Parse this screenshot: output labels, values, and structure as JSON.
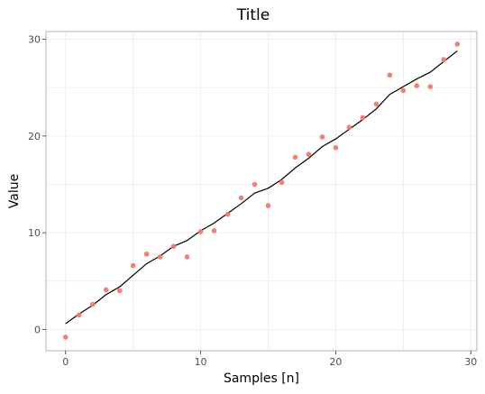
{
  "chart_data": {
    "type": "scatter",
    "title": "Title",
    "xlabel": "Samples [n]",
    "ylabel": "Value",
    "xlim": [
      -1.45,
      30.45
    ],
    "ylim": [
      -2.2,
      30.8
    ],
    "xticks": [
      0,
      10,
      20,
      30
    ],
    "yticks": [
      0,
      10,
      20,
      30
    ],
    "grid": true,
    "legend": "none",
    "colors": {
      "points": "#f8766d",
      "line": "#000000"
    },
    "series": [
      {
        "kind": "points",
        "x": [
          0,
          1,
          2,
          3,
          4,
          5,
          6,
          7,
          8,
          9,
          10,
          11,
          12,
          13,
          14,
          15,
          16,
          17,
          18,
          19,
          20,
          21,
          22,
          23,
          24,
          25,
          26,
          27,
          28,
          29
        ],
        "y": [
          -0.8,
          1.5,
          2.6,
          4.1,
          4.0,
          6.6,
          7.8,
          7.5,
          8.6,
          7.5,
          10.1,
          10.2,
          11.9,
          13.6,
          15.0,
          12.8,
          15.2,
          17.8,
          18.1,
          19.9,
          18.8,
          20.9,
          21.9,
          23.3,
          26.3,
          24.7,
          25.2,
          25.1,
          27.9,
          29.5
        ]
      },
      {
        "kind": "line",
        "x": [
          0,
          1,
          2,
          3,
          4,
          5,
          6,
          7,
          8,
          9,
          10,
          11,
          12,
          13,
          14,
          15,
          16,
          17,
          18,
          19,
          20,
          21,
          22,
          23,
          24,
          25,
          26,
          27,
          28,
          29
        ],
        "y": [
          0.6,
          1.6,
          2.5,
          3.6,
          4.4,
          5.6,
          6.8,
          7.6,
          8.6,
          9.2,
          10.2,
          11.0,
          12.0,
          13.0,
          14.1,
          14.6,
          15.5,
          16.7,
          17.7,
          18.9,
          19.7,
          20.7,
          21.7,
          22.8,
          24.3,
          25.1,
          25.9,
          26.6,
          27.7,
          28.8
        ]
      }
    ]
  }
}
